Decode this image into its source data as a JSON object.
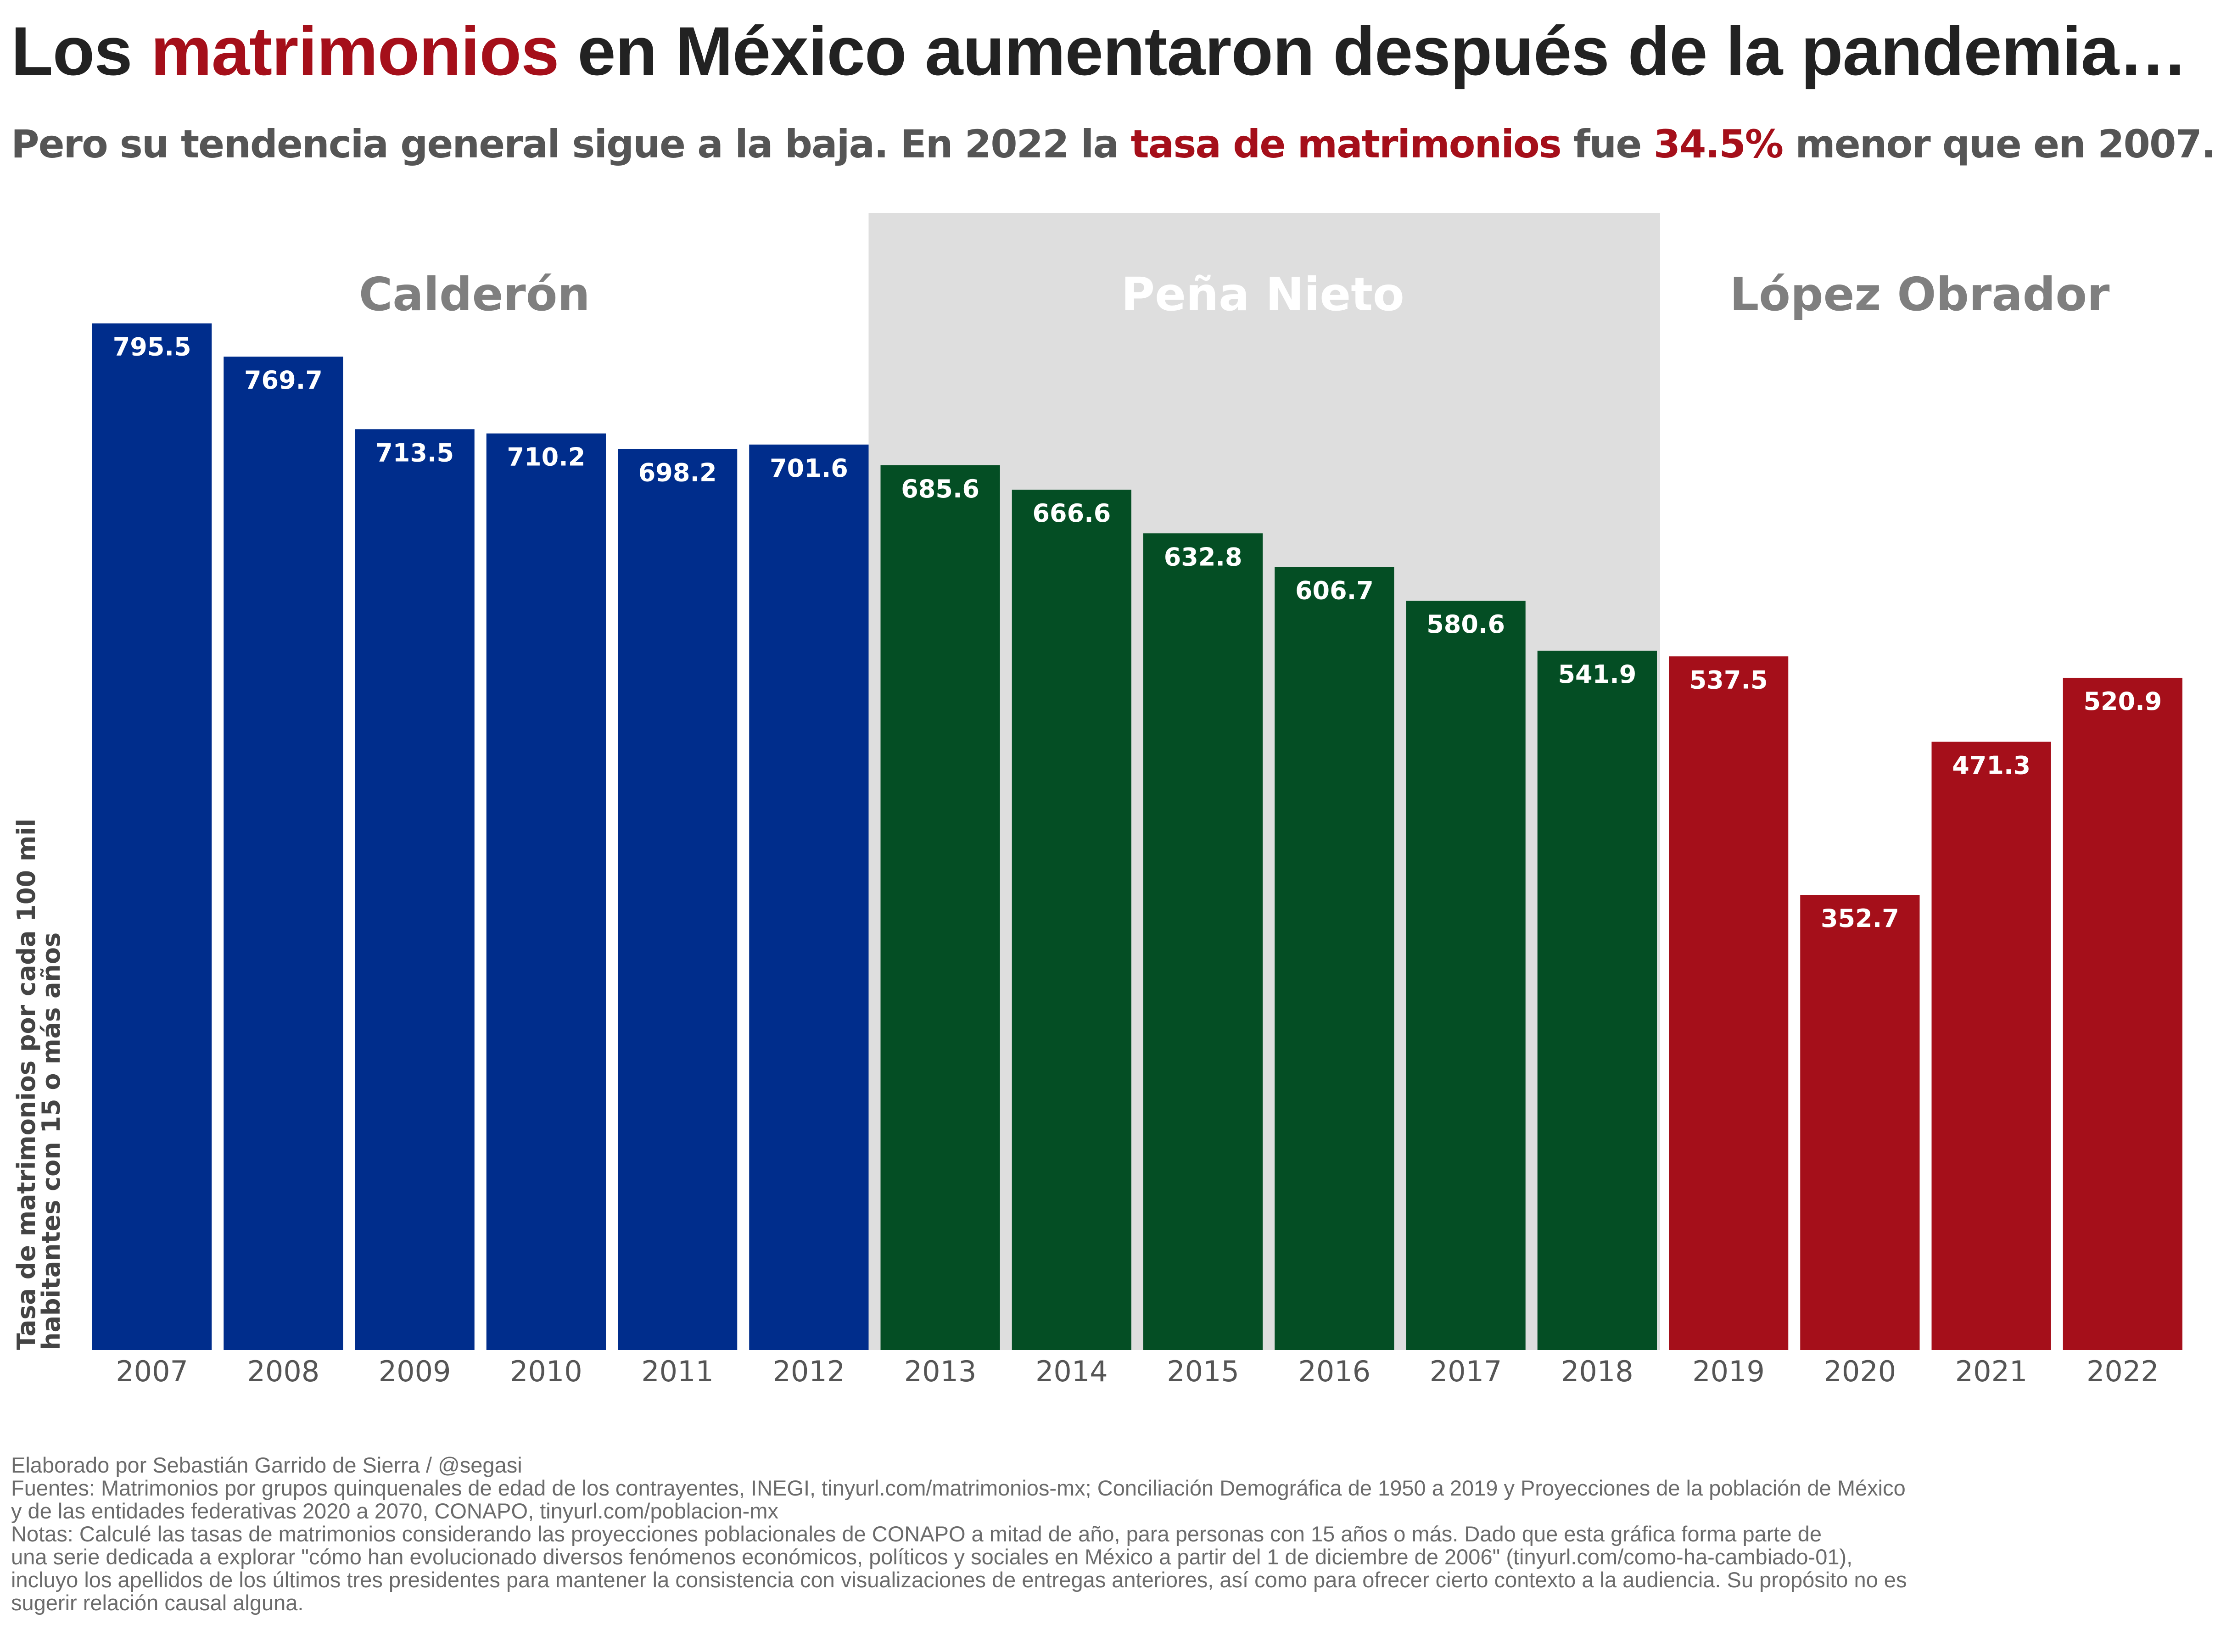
{
  "header": {
    "title_pre": "Los ",
    "title_highlight": "matrimonios",
    "title_post": " en México aumentaron después de la pandemia…",
    "subtitle_pre": "Pero su tendencia general sigue a la baja. En 2022 la ",
    "subtitle_highlight1": "tasa de matrimonios",
    "subtitle_mid": " fue ",
    "subtitle_highlight2": "34.5%",
    "subtitle_post": " menor que en 2007."
  },
  "colors": {
    "calderon": "#002d8c",
    "pena_nieto": "#044e24",
    "lopez_obrador": "#a50f1a",
    "highlight": "#a50f1a",
    "shade": "#dedede",
    "period_label": "#7f7f7f",
    "period_label_shaded": "#ffffff"
  },
  "chart_data": {
    "type": "bar",
    "categories": [
      "2007",
      "2008",
      "2009",
      "2010",
      "2011",
      "2012",
      "2013",
      "2014",
      "2015",
      "2016",
      "2017",
      "2018",
      "2019",
      "2020",
      "2021",
      "2022"
    ],
    "values": [
      795.5,
      769.7,
      713.5,
      710.2,
      698.2,
      701.6,
      685.6,
      666.6,
      632.8,
      606.7,
      580.6,
      541.9,
      537.5,
      352.7,
      471.3,
      520.9
    ],
    "value_labels": [
      "795.5",
      "769.7",
      "713.5",
      "710.2",
      "698.2",
      "701.6",
      "685.6",
      "666.6",
      "632.8",
      "606.7",
      "580.6",
      "541.9",
      "537.5",
      "352.7",
      "471.3",
      "520.9"
    ],
    "group": [
      "calderon",
      "calderon",
      "calderon",
      "calderon",
      "calderon",
      "calderon",
      "pena_nieto",
      "pena_nieto",
      "pena_nieto",
      "pena_nieto",
      "pena_nieto",
      "pena_nieto",
      "lopez_obrador",
      "lopez_obrador",
      "lopez_obrador",
      "lopez_obrador"
    ],
    "periods": [
      {
        "key": "calderon",
        "label": "Calderón",
        "start": "2007",
        "end": "2012",
        "shaded": false
      },
      {
        "key": "pena_nieto",
        "label": "Peña Nieto",
        "start": "2013",
        "end": "2018",
        "shaded": true
      },
      {
        "key": "lopez_obrador",
        "label": "López Obrador",
        "start": "2019",
        "end": "2022",
        "shaded": false
      }
    ],
    "ylabel_line1": "Tasa de matrimonios por cada 100 mil",
    "ylabel_line2": "habitantes con 15 o más años",
    "ylim": [
      0,
      800
    ],
    "grid": false,
    "legend": "none"
  },
  "footer": {
    "lines": [
      "Elaborado por Sebastián Garrido de Sierra / @segasi",
      "Fuentes: Matrimonios por grupos quinquenales de edad de los contrayentes, INEGI, tinyurl.com/matrimonios-mx; Conciliación Demográfica de 1950 a 2019 y Proyecciones de la población de México",
      "y de las entidades federativas 2020 a 2070, CONAPO, tinyurl.com/poblacion-mx",
      "Notas: Calculé las tasas de matrimonios considerando las proyecciones poblacionales de CONAPO a mitad de año, para personas con 15 años o más. Dado que esta gráfica forma parte de",
      "una serie dedicada a explorar \"cómo han evolucionado diversos fenómenos económicos, políticos y sociales en México a partir del 1 de diciembre de 2006\" (tinyurl.com/como-ha-cambiado-01),",
      "incluyo los apellidos de los últimos tres presidentes para mantener la consistencia con visualizaciones de entregas anteriores, así como para ofrecer cierto contexto a la audiencia. Su propósito no es",
      "sugerir relación causal alguna."
    ]
  }
}
